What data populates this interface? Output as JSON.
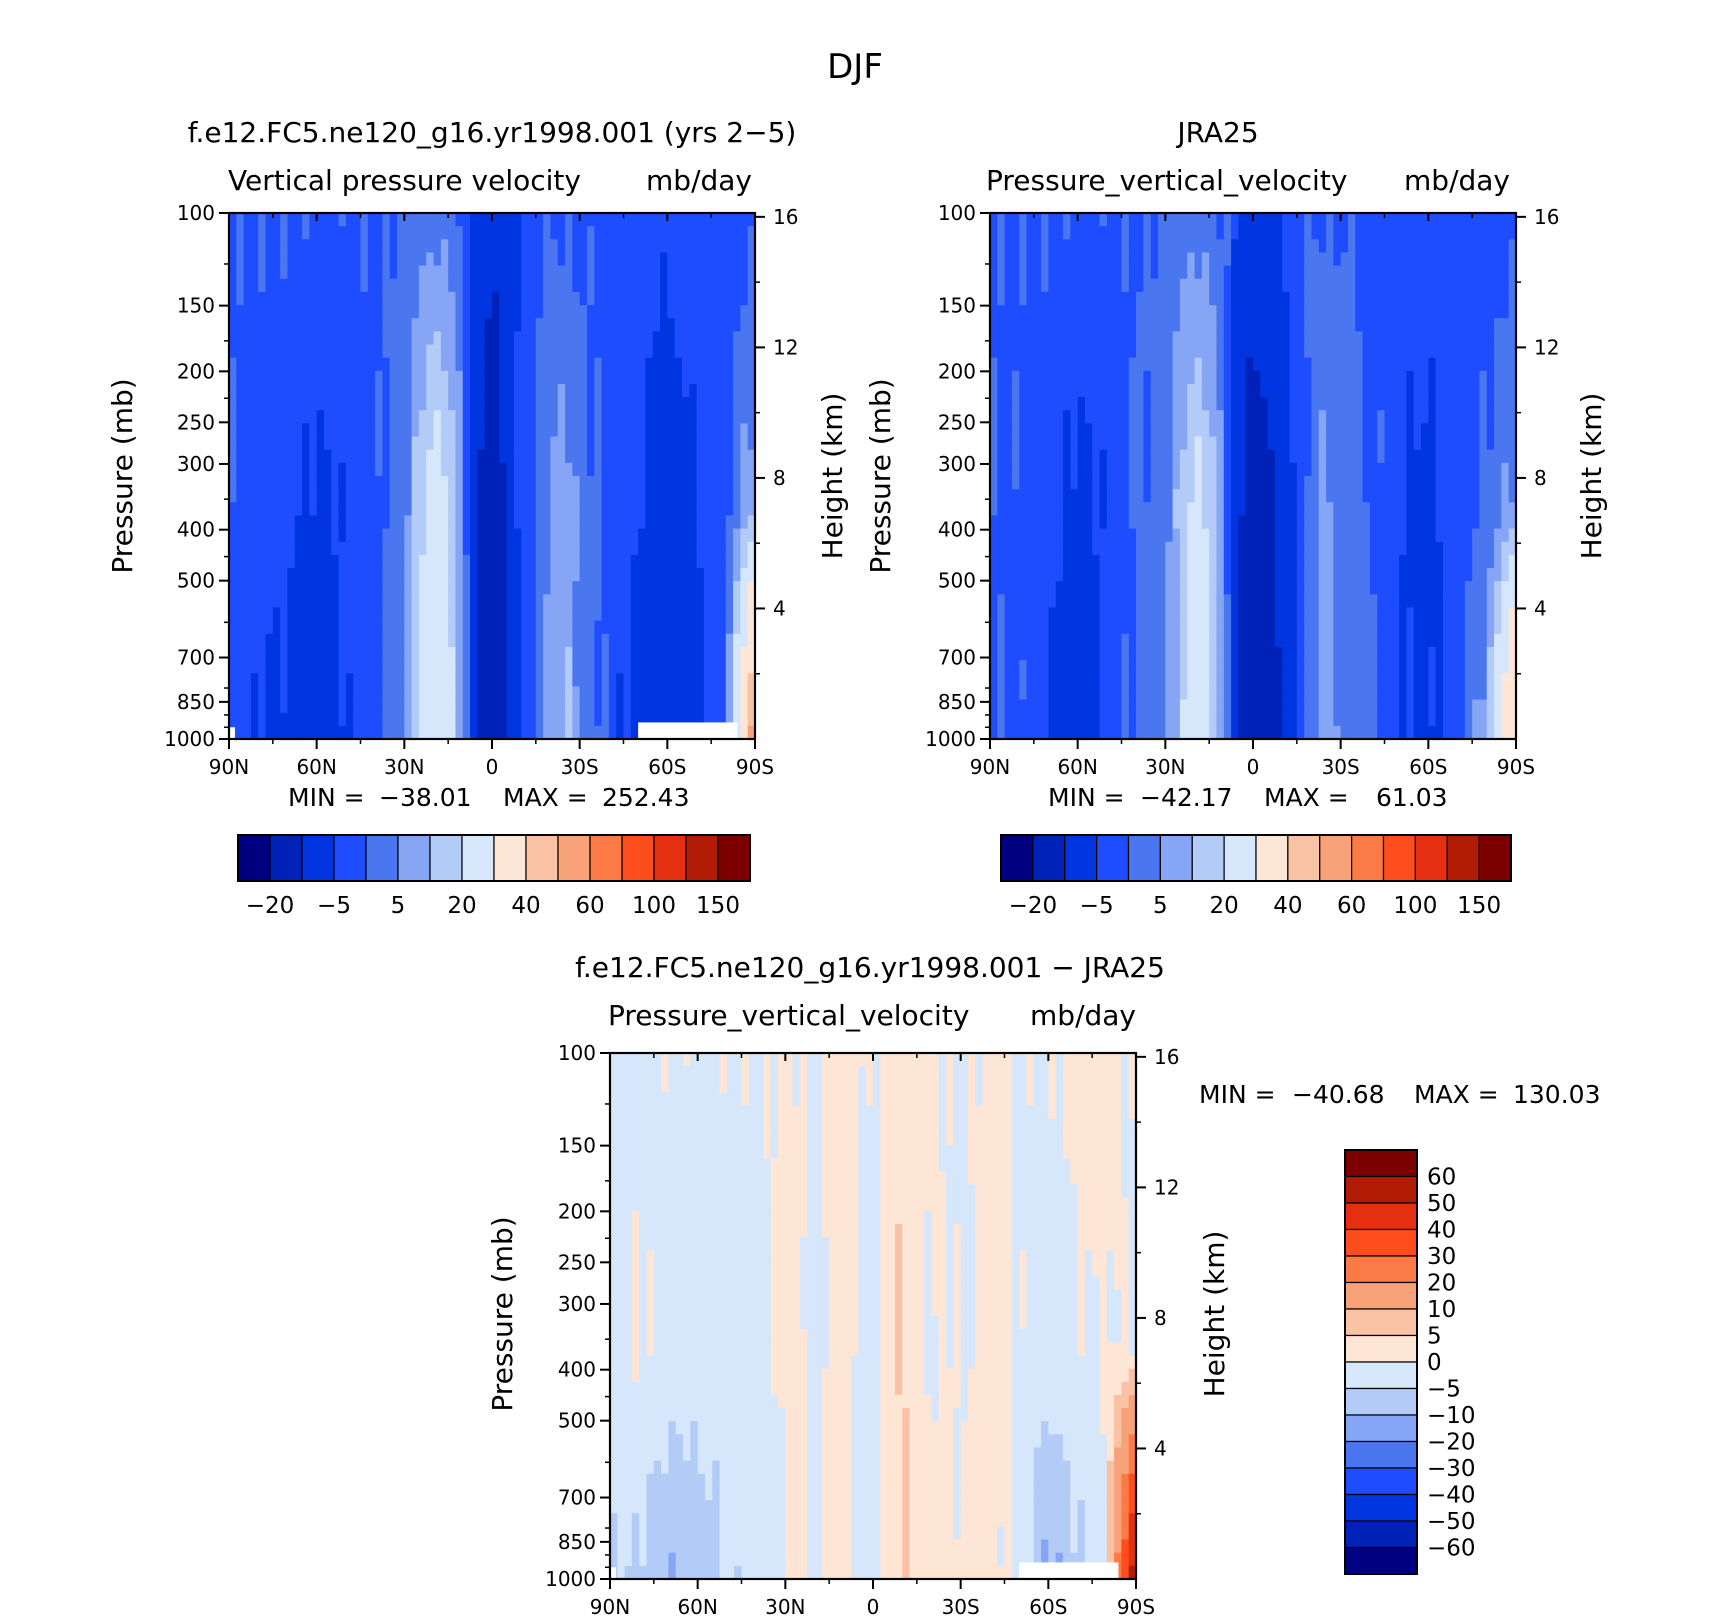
{
  "figure_title": "DJF",
  "colors": {
    "negative_scale": [
      "#000080",
      "#0022b8",
      "#0035e0",
      "#1e4dff",
      "#4a77f0",
      "#86a6f5",
      "#b3cbf7",
      "#d6e6fb"
    ],
    "positive_scale": [
      "#fde6d6",
      "#f9c2a4",
      "#f8a27a",
      "#fb7a45",
      "#fe4d1c",
      "#e43010",
      "#b21c06",
      "#7d0000"
    ]
  },
  "chart_data": [
    {
      "id": "model",
      "type": "heatmap",
      "title": "f.e12.FC5.ne120_g16.yr1998.001 (yrs 2-5)",
      "subtitle_left": "Vertical pressure velocity",
      "subtitle_right": "mb/day",
      "xlabel": "",
      "ylabel": "Pressure (mb)",
      "ylabel_right": "Height (km)",
      "x_ticks": [
        "90N",
        "60N",
        "30N",
        "0",
        "30S",
        "60S",
        "90S"
      ],
      "y_ticks": [
        "100",
        "150",
        "200",
        "250",
        "300",
        "400",
        "500",
        "700",
        "850",
        "1000"
      ],
      "y_tick_values": [
        100,
        150,
        200,
        250,
        300,
        400,
        500,
        700,
        850,
        1000
      ],
      "y_right_ticks": [
        "16",
        "12",
        "8",
        "4"
      ],
      "y_right_values": [
        16,
        12,
        8,
        4
      ],
      "xlim": [
        90,
        -90
      ],
      "ylim": [
        1000,
        100
      ],
      "stats": {
        "min_label": "MIN =",
        "min": "-38.01",
        "max_label": "MAX =",
        "max": "252.43"
      },
      "levels": [
        -30,
        -20,
        -10,
        -5,
        0,
        5,
        10,
        20,
        30,
        40,
        50,
        60,
        80,
        100,
        120,
        150
      ],
      "colorbar_labels": [
        "-20",
        "-5",
        "5",
        "20",
        "40",
        "60",
        "100",
        "150"
      ],
      "profile": {
        "lat": [
          90,
          80,
          70,
          60,
          50,
          40,
          30,
          25,
          20,
          15,
          10,
          5,
          0,
          -5,
          -10,
          -15,
          -20,
          -25,
          -30,
          -40,
          -45,
          -50,
          -60,
          -70,
          -80,
          -90
        ],
        "upper": [
          -5,
          -5,
          -5,
          -6,
          -6,
          -5,
          -4,
          -3,
          -2,
          -3,
          -5,
          -12,
          -18,
          -14,
          -8,
          -6,
          -5,
          -6,
          -6,
          -7,
          -7,
          -7,
          -9,
          -7,
          -7,
          -7
        ],
        "mid": [
          -6,
          -7,
          -9,
          -11,
          -9,
          -6,
          -2,
          8,
          15,
          12,
          0,
          -20,
          -28,
          -18,
          -8,
          -4,
          0,
          4,
          -2,
          -6,
          -8,
          -10,
          -14,
          -10,
          -6,
          5
        ],
        "low": [
          -7,
          -10,
          -12,
          -13,
          -11,
          -6,
          0,
          10,
          18,
          14,
          2,
          -22,
          -30,
          -20,
          -10,
          -4,
          2,
          6,
          0,
          -6,
          -10,
          -12,
          -16,
          -12,
          -6,
          60
        ]
      },
      "missing_below_ground": true
    },
    {
      "id": "obs",
      "type": "heatmap",
      "title": "JRA25",
      "subtitle_left": "Pressure_vertical_velocity",
      "subtitle_right": "mb/day",
      "xlabel": "",
      "ylabel": "Pressure (mb)",
      "ylabel_right": "Height (km)",
      "x_ticks": [
        "90N",
        "60N",
        "30N",
        "0",
        "30S",
        "60S",
        "90S"
      ],
      "y_ticks": [
        "100",
        "150",
        "200",
        "250",
        "300",
        "400",
        "500",
        "700",
        "850",
        "1000"
      ],
      "y_tick_values": [
        100,
        150,
        200,
        250,
        300,
        400,
        500,
        700,
        850,
        1000
      ],
      "y_right_ticks": [
        "16",
        "12",
        "8",
        "4"
      ],
      "y_right_values": [
        16,
        12,
        8,
        4
      ],
      "xlim": [
        90,
        -90
      ],
      "ylim": [
        1000,
        100
      ],
      "stats": {
        "min_label": "MIN =",
        "min": "-42.17",
        "max_label": "MAX =",
        "max": "61.03"
      },
      "levels": [
        -30,
        -20,
        -10,
        -5,
        0,
        5,
        10,
        20,
        30,
        40,
        50,
        60,
        80,
        100,
        120,
        150
      ],
      "colorbar_labels": [
        "-20",
        "-5",
        "5",
        "20",
        "40",
        "60",
        "100",
        "150"
      ],
      "profile": {
        "lat": [
          90,
          80,
          70,
          60,
          50,
          40,
          30,
          25,
          20,
          15,
          10,
          5,
          0,
          -5,
          -10,
          -15,
          -20,
          -25,
          -30,
          -40,
          -45,
          -50,
          -60,
          -70,
          -80,
          -90
        ],
        "upper": [
          -5,
          -5,
          -5,
          -6,
          -6,
          -5,
          -4,
          -3,
          -2,
          -3,
          -5,
          -10,
          -16,
          -14,
          -10,
          -7,
          -5,
          -5,
          -5,
          -6,
          -6,
          -7,
          -8,
          -7,
          -7,
          -7
        ],
        "mid": [
          -6,
          -6,
          -8,
          -12,
          -9,
          -5,
          -2,
          6,
          12,
          10,
          -2,
          -18,
          -26,
          -22,
          -16,
          -8,
          -2,
          2,
          -2,
          -5,
          -7,
          -10,
          -12,
          -8,
          -4,
          2
        ],
        "low": [
          -4,
          -6,
          -10,
          -13,
          -9,
          -4,
          0,
          8,
          14,
          12,
          0,
          -20,
          -30,
          -24,
          -18,
          -10,
          -2,
          4,
          0,
          -4,
          -8,
          -10,
          -12,
          -6,
          4,
          45
        ]
      },
      "missing_below_ground": false
    },
    {
      "id": "diff",
      "type": "heatmap",
      "title": "f.e12.FC5.ne120_g16.yr1998.001 - JRA25",
      "subtitle_left": "Pressure_vertical_velocity",
      "subtitle_right": "mb/day",
      "xlabel": "",
      "ylabel": "Pressure (mb)",
      "ylabel_right": "Height (km)",
      "x_ticks": [
        "90N",
        "60N",
        "30N",
        "0",
        "30S",
        "60S",
        "90S"
      ],
      "y_ticks": [
        "100",
        "150",
        "200",
        "250",
        "300",
        "400",
        "500",
        "700",
        "850",
        "1000"
      ],
      "y_tick_values": [
        100,
        150,
        200,
        250,
        300,
        400,
        500,
        700,
        850,
        1000
      ],
      "y_right_ticks": [
        "16",
        "12",
        "8",
        "4"
      ],
      "y_right_values": [
        16,
        12,
        8,
        4
      ],
      "xlim": [
        90,
        -90
      ],
      "ylim": [
        1000,
        100
      ],
      "stats": {
        "min_label": "MIN =",
        "min": "-40.68",
        "max_label": "MAX =",
        "max": "130.03"
      },
      "levels": [
        -60,
        -50,
        -40,
        -30,
        -20,
        -10,
        -5,
        0,
        5,
        10,
        20,
        30,
        40,
        50,
        60
      ],
      "colorbar_labels": [
        "60",
        "50",
        "40",
        "30",
        "20",
        "10",
        "5",
        "0",
        "-5",
        "-10",
        "-20",
        "-30",
        "-40",
        "-50",
        "-60"
      ],
      "profile": {
        "lat": [
          90,
          80,
          70,
          60,
          50,
          40,
          30,
          25,
          20,
          15,
          10,
          5,
          0,
          -5,
          -10,
          -15,
          -20,
          -25,
          -30,
          -40,
          -45,
          -50,
          -60,
          -70,
          -80,
          -90
        ],
        "upper": [
          -2,
          -2,
          -1,
          -1,
          -1,
          -1,
          1,
          1,
          -1,
          2,
          3,
          1,
          -1,
          1,
          3,
          2,
          1,
          -1,
          -1,
          2,
          2,
          -1,
          -1,
          2,
          2,
          -1
        ],
        "mid": [
          -2,
          1,
          -2,
          -3,
          -2,
          -1,
          1,
          2,
          -3,
          2,
          4,
          -2,
          -4,
          2,
          6,
          3,
          -1,
          1,
          -1,
          3,
          2,
          -1,
          -2,
          -1,
          1,
          -2
        ],
        "low": [
          -4,
          -6,
          -10,
          -8,
          -5,
          -3,
          -2,
          3,
          -4,
          2,
          3,
          -3,
          -2,
          2,
          5,
          3,
          1,
          2,
          1,
          2,
          1,
          -2,
          -12,
          -6,
          1,
          60
        ]
      },
      "missing_below_ground": true
    }
  ]
}
